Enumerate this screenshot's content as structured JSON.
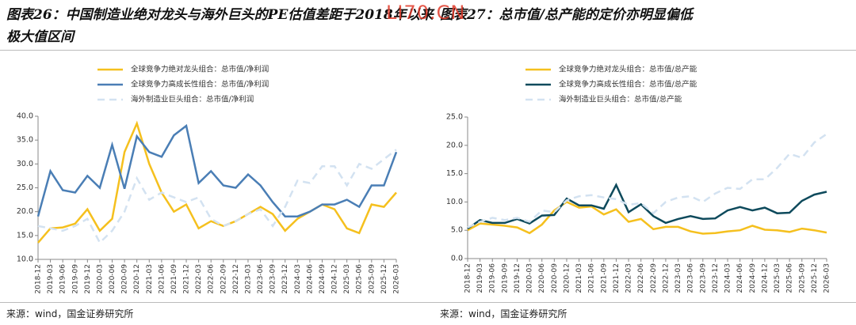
{
  "watermark": "LI70.CN",
  "chart_data": [
    {
      "type": "line",
      "title": "图表26：中国制造业绝对龙头与海外巨头的PE估值差距于2018年以来极大值区间",
      "source": "来源：wind，国金证券研究所",
      "categories": [
        "2018-12",
        "2019-03",
        "2019-06",
        "2019-09",
        "2019-12",
        "2020-03",
        "2020-06",
        "2020-09",
        "2020-12",
        "2021-03",
        "2021-06",
        "2021-09",
        "2021-12",
        "2022-03",
        "2022-06",
        "2022-09",
        "2022-12",
        "2023-03",
        "2023-06",
        "2023-09",
        "2023-12",
        "2024-03",
        "2024-06",
        "2024-09",
        "2024-12",
        "2025-03",
        "2025-06",
        "2025-09",
        "2025-12",
        "2026-03"
      ],
      "series": [
        {
          "name": "全球竞争力绝对龙头组合：总市值/净利润",
          "color": "#f5c01e",
          "dash": false,
          "values": [
            13.5,
            16.5,
            16.7,
            17.5,
            20.5,
            16,
            18.5,
            32.5,
            38.5,
            30,
            24,
            20,
            21.5,
            16.5,
            18,
            17,
            18,
            19.5,
            21,
            19.5,
            16,
            18.5,
            20,
            21.5,
            20.5,
            16.5,
            15.5,
            21.5,
            21,
            24
          ]
        },
        {
          "name": "全球竞争力高成长性组合：总市值/净利润",
          "color": "#4a7eb5",
          "dash": false,
          "values": [
            19,
            28.5,
            24.5,
            24,
            27.5,
            25,
            34,
            24.8,
            35.8,
            32.5,
            31.5,
            36,
            38,
            26,
            28.5,
            25.5,
            25,
            27.8,
            25.5,
            22,
            19,
            19,
            20,
            21.5,
            21.5,
            22.5,
            21,
            25.5,
            25.5,
            32.5
          ]
        },
        {
          "name": "海外制造业巨头组合：总市值/净利润",
          "color": "#d3e2f1",
          "dash": true,
          "values": [
            17,
            16.5,
            16,
            17,
            18.5,
            13.5,
            16,
            20,
            27,
            22.5,
            24,
            23,
            22,
            23,
            18.5,
            17,
            18,
            19.5,
            20.5,
            17,
            21,
            26.5,
            26,
            29.5,
            29.5,
            25.5,
            30,
            29,
            31,
            33
          ]
        }
      ],
      "ylim": [
        10,
        40
      ],
      "yticks": [
        {
          "value": 10,
          "label": "10.0"
        },
        {
          "value": 15,
          "label": "15.0"
        },
        {
          "value": 20,
          "label": "20.0"
        },
        {
          "value": 25,
          "label": "25.0"
        },
        {
          "value": 30,
          "label": "30.0"
        },
        {
          "value": 35,
          "label": "35.0"
        },
        {
          "value": 40,
          "label": "40.0"
        }
      ]
    },
    {
      "type": "line",
      "title": "图表27：总市值/总产能的定价亦明显偏低",
      "source": "来源：wind，国金证券研究所",
      "categories": [
        "2018-12",
        "2019-03",
        "2019-06",
        "2019-09",
        "2019-12",
        "2020-03",
        "2020-06",
        "2020-09",
        "2020-12",
        "2021-03",
        "2021-06",
        "2021-09",
        "2021-12",
        "2022-03",
        "2022-06",
        "2022-09",
        "2022-12",
        "2023-03",
        "2023-06",
        "2023-09",
        "2023-12",
        "2024-03",
        "2024-06",
        "2024-09",
        "2024-12",
        "2025-03",
        "2025-06",
        "2025-09",
        "2025-12",
        "2026-03"
      ],
      "series": [
        {
          "name": "全球竞争力绝对龙头组合：总市值/总产能",
          "color": "#f5c01e",
          "dash": false,
          "values": [
            5,
            6.2,
            6,
            5.8,
            5.5,
            4.5,
            6,
            8.5,
            10,
            9,
            9.2,
            7.8,
            8.7,
            6.5,
            7,
            5.2,
            5.6,
            5.6,
            4.8,
            4.4,
            4.5,
            4.8,
            5,
            5.8,
            5.1,
            5,
            4.7,
            5.3,
            5,
            4.6
          ]
        },
        {
          "name": "全球竞争力高成长性组合：总市值/总产能",
          "color": "#0e4a5c",
          "dash": false,
          "values": [
            5.3,
            6.8,
            6.3,
            6.3,
            7,
            6.2,
            7.6,
            7.7,
            10.6,
            9.4,
            9.4,
            8.8,
            13,
            8.2,
            9.6,
            7.5,
            6.3,
            7,
            7.5,
            7,
            7.1,
            8.5,
            9.1,
            8.5,
            9,
            8,
            8.1,
            10.2,
            11.3,
            11.8
          ]
        },
        {
          "name": "海外制造业巨头组合：总市值/总产能",
          "color": "#d3e2f1",
          "dash": true,
          "values": [
            5.5,
            6.5,
            7.2,
            6.8,
            7.2,
            6.5,
            8.5,
            8.2,
            10.3,
            11,
            11.2,
            10.8,
            10.5,
            9.5,
            9.8,
            8,
            10,
            10.8,
            11,
            10,
            11.5,
            12.5,
            12.3,
            14,
            14,
            16,
            18.5,
            17.8,
            20.5,
            22
          ]
        }
      ],
      "ylim": [
        0,
        25
      ],
      "yticks": [
        {
          "value": 0,
          "label": "0.0"
        },
        {
          "value": 5,
          "label": "5.0"
        },
        {
          "value": 10,
          "label": "10.0"
        },
        {
          "value": 15,
          "label": "15.0"
        },
        {
          "value": 20,
          "label": "20.0"
        },
        {
          "value": 25,
          "label": "25.0"
        }
      ]
    }
  ]
}
